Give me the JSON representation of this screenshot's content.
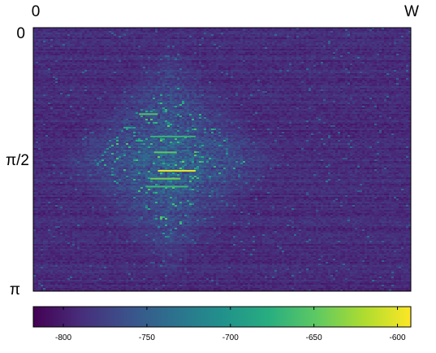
{
  "chart_data": {
    "type": "heatmap",
    "title": "",
    "xlabel": "",
    "ylabel": "",
    "x_ticks": [
      "0",
      "W"
    ],
    "y_ticks": [
      "0",
      "π/2",
      "π"
    ],
    "colorbar": {
      "colormap": "viridis",
      "range": [
        -818,
        -592
      ],
      "ticks": [
        -800,
        -750,
        -700,
        -650,
        -600
      ],
      "tick_labels": [
        "-800",
        "-750",
        "-700",
        "-650",
        "-600"
      ]
    },
    "description_of_values": "Mostly low values (~-790 to -770) with a brighter diamond-shaped region centered at y = π/2, peaking near -600 along a few horizontal streaks.",
    "grid": false
  }
}
